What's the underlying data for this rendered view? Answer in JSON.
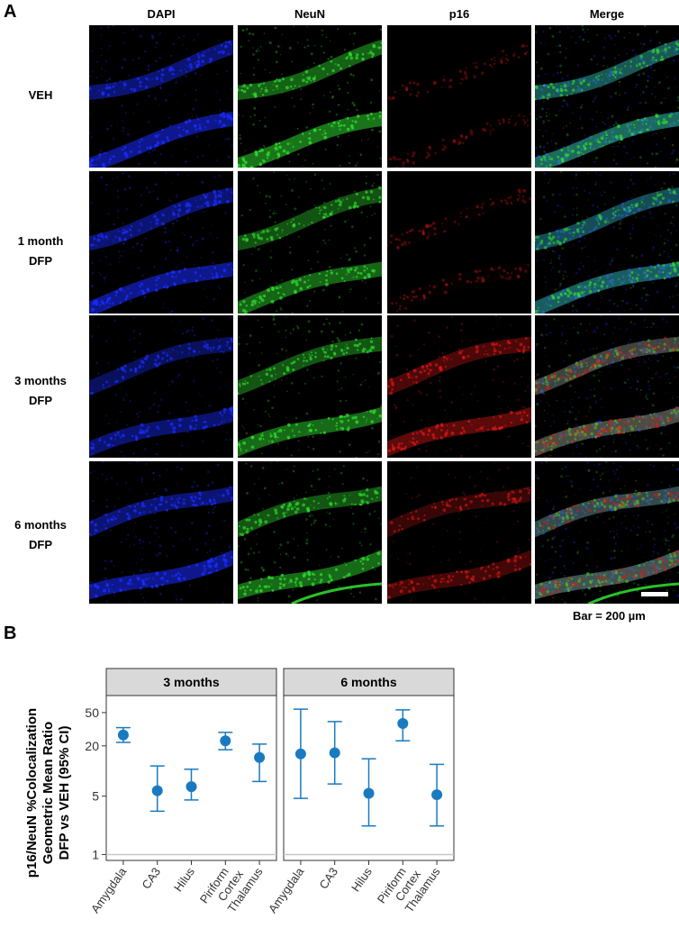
{
  "panel_a": {
    "letter": "A",
    "columns": [
      "DAPI",
      "NeuN",
      "p16",
      "Merge"
    ],
    "rows": [
      {
        "line1": "VEH",
        "line2": ""
      },
      {
        "line1": "1 month",
        "line2": "DFP"
      },
      {
        "line1": "3 months",
        "line2": "DFP"
      },
      {
        "line1": "6 months",
        "line2": "DFP"
      }
    ],
    "scale_caption": "Bar = 200 µm"
  },
  "panel_b": {
    "letter": "B",
    "ylabel_lines": [
      "p16/NeuN %Colocalization",
      "Geometric Mean Ratio",
      "DFP vs VEH (95% CI)"
    ]
  },
  "chart_data": {
    "type": "scatter",
    "scale": "log",
    "ylim": [
      0.85,
      80
    ],
    "yticks": [
      1,
      5,
      20,
      50
    ],
    "reference_line": 1,
    "categories": [
      "Amygdala",
      "CA3",
      "Hilus",
      "Piriform\nCortex",
      "Thalamus"
    ],
    "point_color": "#1a7abf",
    "facets": [
      {
        "title": "3 months",
        "points": [
          {
            "category": "Amygdala",
            "y": 27,
            "lo": 22,
            "hi": 33
          },
          {
            "category": "CA3",
            "y": 5.8,
            "lo": 3.3,
            "hi": 11.5
          },
          {
            "category": "Hilus",
            "y": 6.5,
            "lo": 4.5,
            "hi": 10.5
          },
          {
            "category": "Piriform\nCortex",
            "y": 23,
            "lo": 18,
            "hi": 29
          },
          {
            "category": "Thalamus",
            "y": 14.5,
            "lo": 7.5,
            "hi": 21
          }
        ]
      },
      {
        "title": "6 months",
        "points": [
          {
            "category": "Amygdala",
            "y": 16,
            "lo": 4.7,
            "hi": 55
          },
          {
            "category": "CA3",
            "y": 16.5,
            "lo": 7,
            "hi": 39
          },
          {
            "category": "Hilus",
            "y": 5.4,
            "lo": 2.2,
            "hi": 14
          },
          {
            "category": "Piriform\nCortex",
            "y": 37,
            "lo": 23,
            "hi": 54
          },
          {
            "category": "Thalamus",
            "y": 5.2,
            "lo": 2.2,
            "hi": 12
          }
        ]
      }
    ]
  },
  "colors": {
    "dapi": "#1a2cff",
    "neun": "#2fd62f",
    "p16": "#e01818",
    "strip": "#d9d9d9",
    "refline": "#c8c8c8",
    "point": "#1a7abf"
  }
}
